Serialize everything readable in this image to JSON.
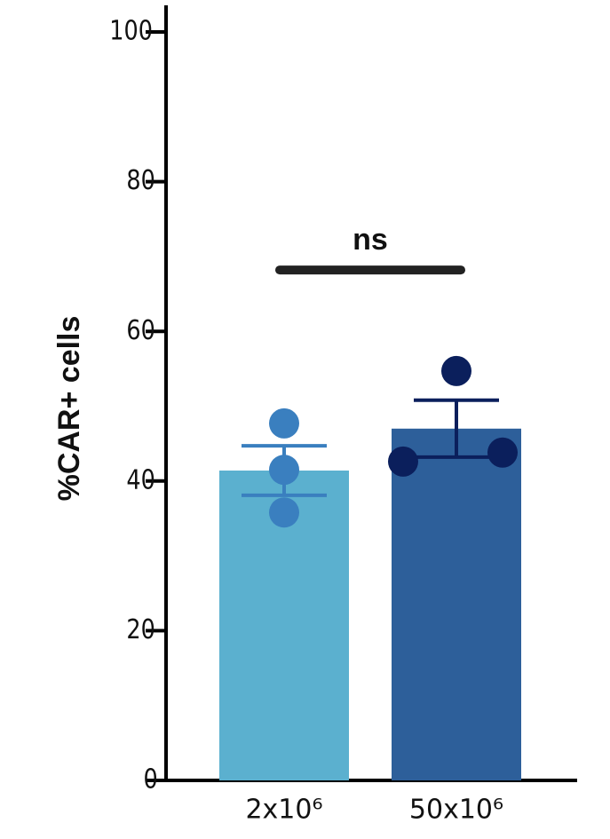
{
  "chart_data": {
    "type": "bar",
    "y_label": "%CAR+ cells",
    "categories": [
      "2x10⁶",
      "50x10⁶"
    ],
    "values": [
      41.4,
      47.0
    ],
    "errors": [
      3.3,
      3.8
    ],
    "points": [
      [
        47.7,
        41.5,
        35.8
      ],
      [
        54.7,
        42.6,
        43.8
      ]
    ],
    "colors": [
      "#5bb0cf",
      "#2d5f9a"
    ],
    "point_colors": [
      "#3a7fbf",
      "#0b1f5c"
    ],
    "significance": {
      "label": "ns",
      "y": 68.2
    },
    "ylim": [
      0,
      100
    ],
    "yticks": [
      0,
      20,
      40,
      60,
      80,
      100
    ]
  }
}
